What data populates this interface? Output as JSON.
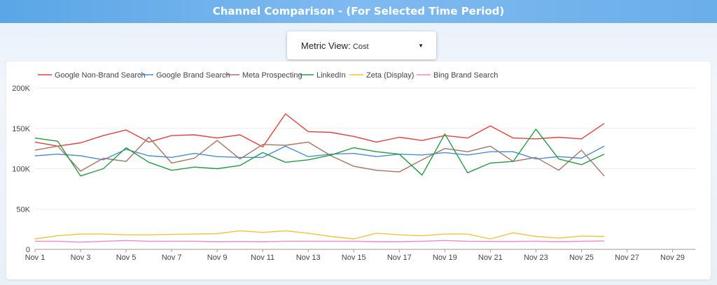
{
  "header": {
    "title": "Channel Comparison - (For Selected Time Period)"
  },
  "metric_selector": {
    "label": "Metric View",
    "value": "Cost"
  },
  "chart_data": {
    "type": "line",
    "title": "",
    "xlabel": "",
    "ylabel": "",
    "ylim": [
      0,
      200000
    ],
    "y_ticks": [
      "0",
      "50K",
      "100K",
      "150K",
      "200K"
    ],
    "x_ticks": [
      "Nov 1",
      "Nov 3",
      "Nov 5",
      "Nov 7",
      "Nov 9",
      "Nov 11",
      "Nov 13",
      "Nov 15",
      "Nov 17",
      "Nov 19",
      "Nov 21",
      "Nov 23",
      "Nov 25",
      "Nov 27",
      "Nov 29"
    ],
    "x_range_days": [
      1,
      30
    ],
    "legend_position": "top",
    "grid": true,
    "series": [
      {
        "name": "Google Non-Brand Search",
        "color": "#e2403c",
        "values": [
          133000,
          128000,
          132000,
          141000,
          148000,
          133000,
          141000,
          142000,
          138000,
          142000,
          127000,
          168000,
          146000,
          145000,
          140000,
          133000,
          139000,
          135000,
          141000,
          138000,
          153000,
          138000,
          137000,
          139000,
          137000,
          156000
        ]
      },
      {
        "name": "Google Brand Search",
        "color": "#4a8ed0",
        "values": [
          116000,
          118000,
          116000,
          111000,
          124000,
          116000,
          114000,
          119000,
          115000,
          114000,
          114000,
          128000,
          115000,
          118000,
          119000,
          115000,
          118000,
          117000,
          120000,
          117000,
          121000,
          121000,
          112000,
          115000,
          113000,
          128000
        ]
      },
      {
        "name": "Meta Prospecting",
        "color": "#a57466",
        "values": [
          123000,
          128000,
          97000,
          113000,
          109000,
          139000,
          107000,
          113000,
          135000,
          112000,
          130000,
          129000,
          133000,
          116000,
          103000,
          98000,
          96000,
          111000,
          125000,
          121000,
          128000,
          109000,
          114000,
          98000,
          123000,
          91000
        ]
      },
      {
        "name": "LinkedIn",
        "color": "#269a43",
        "values": [
          138000,
          134000,
          91000,
          100000,
          126000,
          108000,
          98000,
          102000,
          100000,
          104000,
          120000,
          108000,
          111000,
          117000,
          126000,
          121000,
          118000,
          92000,
          143000,
          95000,
          107000,
          109000,
          149000,
          112000,
          105000,
          118000
        ]
      },
      {
        "name": "Zeta (Display)",
        "color": "#f3c23c",
        "values": [
          13000,
          17000,
          19000,
          19000,
          18000,
          18000,
          18500,
          19000,
          19500,
          23000,
          21000,
          23000,
          20000,
          16000,
          13000,
          20000,
          18000,
          17000,
          19000,
          19000,
          13000,
          20500,
          16000,
          14000,
          16500,
          16000
        ]
      },
      {
        "name": "Bing Brand Search",
        "color": "#ec8ac6",
        "values": [
          10000,
          10000,
          9000,
          10000,
          11000,
          10000,
          10000,
          10000,
          9500,
          9800,
          9500,
          10000,
          10000,
          10000,
          10000,
          9500,
          9500,
          10000,
          11000,
          10000,
          9800,
          9800,
          10000,
          9500,
          10000,
          10500
        ]
      }
    ]
  }
}
